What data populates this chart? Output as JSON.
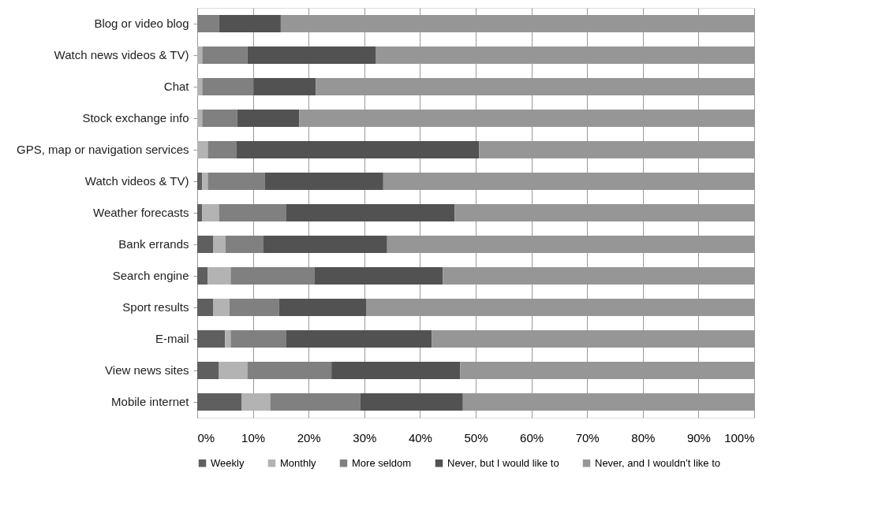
{
  "chart_data": {
    "type": "bar",
    "orientation": "horizontal",
    "stacked": true,
    "categories": [
      "Blog or video blog",
      "Watch news videos & TV)",
      "Chat",
      "Stock exchange info",
      "GPS, map or navigation services",
      "Watch videos & TV)",
      "Weather forecasts",
      "Bank errands",
      "Search engine",
      "Sport results",
      "E-mail",
      "View news sites",
      "Mobile internet"
    ],
    "series": [
      {
        "name": "Weekly",
        "color": "#5f5f5f",
        "values": [
          0,
          0,
          0,
          0,
          0,
          0.9,
          0.9,
          2.9,
          1.9,
          2.9,
          5.0,
          3.9,
          8.0
        ]
      },
      {
        "name": "Monthly",
        "color": "#b3b3b3",
        "values": [
          0,
          0.9,
          0.9,
          0.9,
          1.9,
          1.0,
          3.0,
          2.2,
          4.1,
          2.9,
          1.0,
          5.1,
          5.1
        ]
      },
      {
        "name": "More seldom",
        "color": "#808080",
        "values": [
          3.9,
          8.1,
          9.2,
          6.3,
          5.1,
          10.2,
          12.1,
          6.8,
          15.1,
          8.9,
          10.0,
          15.1,
          16.2
        ]
      },
      {
        "name": "Never, but I would like to",
        "color": "#525252",
        "values": [
          11.1,
          23.1,
          11.2,
          11.1,
          43.6,
          21.3,
          30.2,
          22.2,
          23.0,
          15.7,
          26.1,
          23.1,
          18.4
        ]
      },
      {
        "name": "Never, and I wouldn’t like to",
        "color": "#969696",
        "values": [
          85.0,
          67.9,
          78.7,
          81.7,
          49.4,
          66.6,
          53.8,
          65.9,
          55.9,
          69.6,
          57.9,
          52.8,
          52.3
        ]
      }
    ],
    "xlim": [
      0,
      100
    ],
    "xticks": [
      {
        "value": 0,
        "label": "0%"
      },
      {
        "value": 10,
        "label": "10%"
      },
      {
        "value": 20,
        "label": "20%"
      },
      {
        "value": 30,
        "label": "30%"
      },
      {
        "value": 40,
        "label": "40%"
      },
      {
        "value": 50,
        "label": "50%"
      },
      {
        "value": 60,
        "label": "60%"
      },
      {
        "value": 70,
        "label": "70%"
      },
      {
        "value": 80,
        "label": "80%"
      },
      {
        "value": 90,
        "label": "90%"
      },
      {
        "value": 100,
        "label": "100%"
      }
    ],
    "grid": "x",
    "legend": "bottom"
  }
}
